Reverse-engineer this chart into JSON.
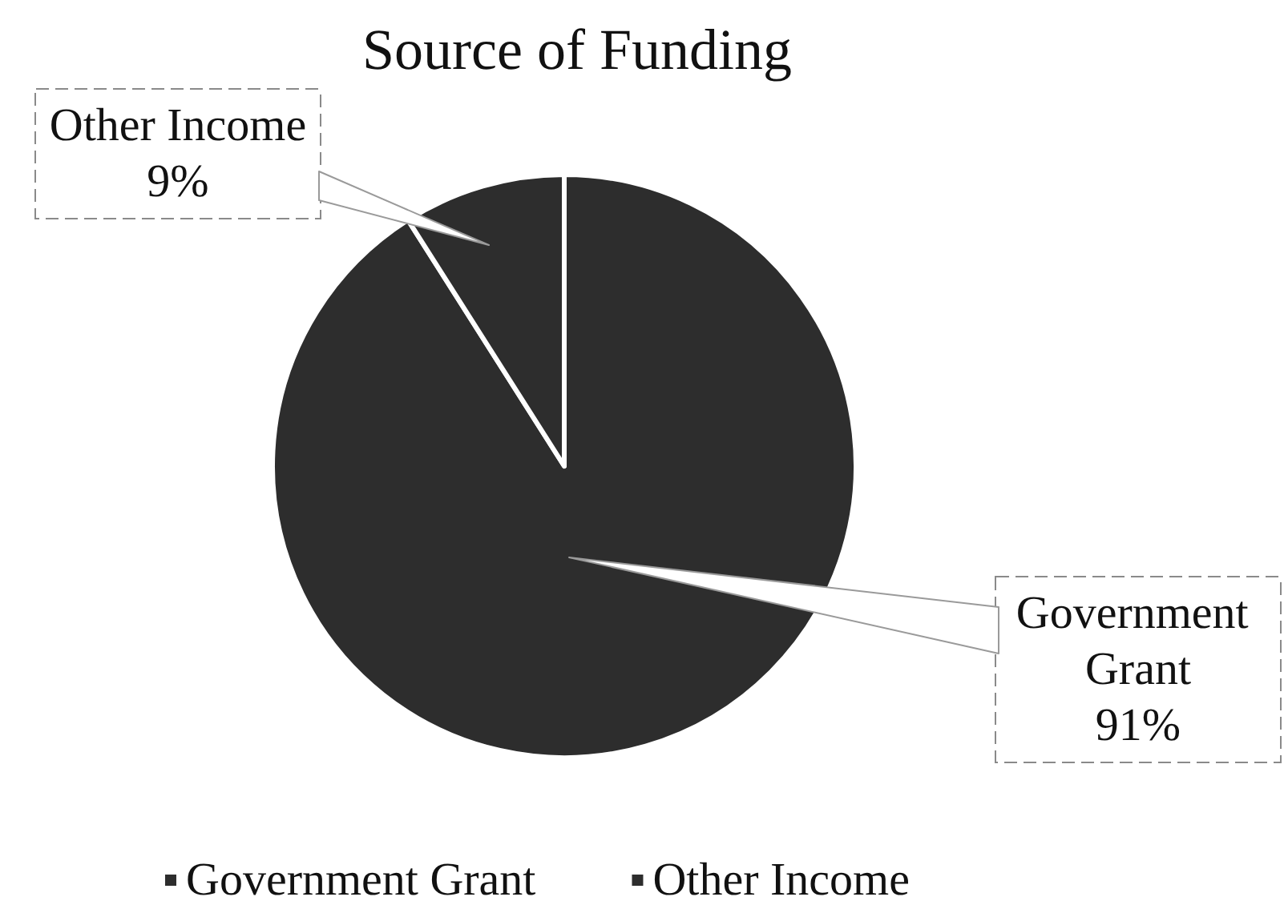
{
  "chart_data": {
    "type": "pie",
    "title": "Source of Funding",
    "categories": [
      "Government Grant",
      "Other Income"
    ],
    "values": [
      91,
      9
    ],
    "colors": [
      "#2d2d2d",
      "#2d2d2d"
    ],
    "value_labels": [
      "91%",
      "9%"
    ],
    "legend": "bottom"
  }
}
